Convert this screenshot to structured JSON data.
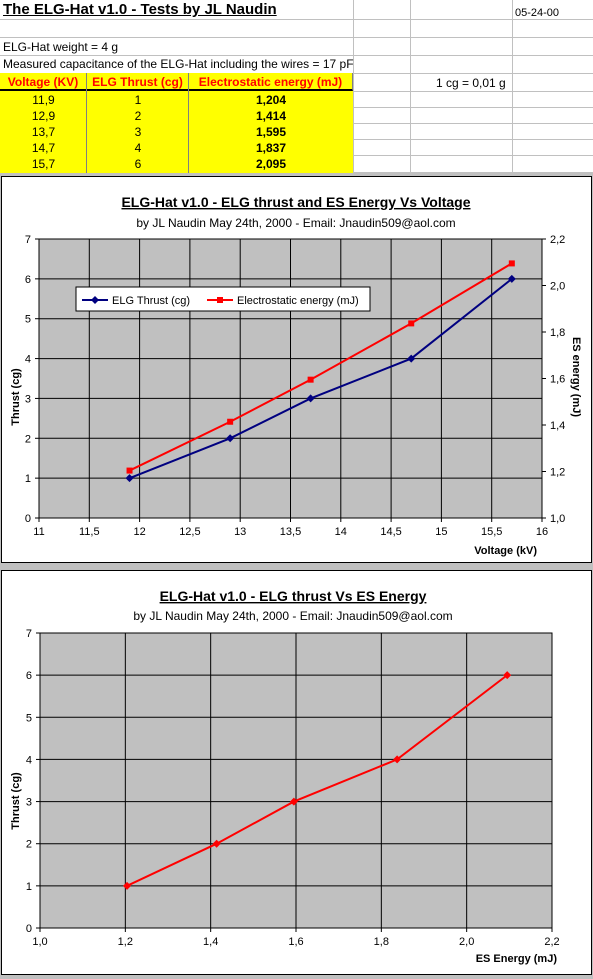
{
  "sheet": {
    "title": "The ELG-Hat v1.0 - Tests by JL Naudin",
    "date": "05-24-00",
    "weight": "ELG-Hat weight = 4 g",
    "capacitance": "Measured capacitance of the ELG-Hat including the wires = 17 pF",
    "conversion": "1 cg = 0,01 g",
    "table": {
      "headers": [
        "Voltage (KV)",
        "ELG Thrust (cg)",
        "Electrostatic energy (mJ)"
      ],
      "rows": [
        [
          "11,9",
          "1",
          "1,204"
        ],
        [
          "12,9",
          "2",
          "1,414"
        ],
        [
          "13,7",
          "3",
          "1,595"
        ],
        [
          "14,7",
          "4",
          "1,837"
        ],
        [
          "15,7",
          "6",
          "2,095"
        ]
      ]
    }
  },
  "chart_data": [
    {
      "type": "line",
      "title": "ELG-Hat v1.0 - ELG thrust and ES Energy Vs Voltage",
      "subtitle": "by JL Naudin May 24th, 2000 - Email: Jnaudin509@aol.com",
      "xlabel": "Voltage (kV)",
      "ylabel": "Thrust (cg)",
      "y2label": "ES energy (mJ)",
      "xlim": [
        11,
        16
      ],
      "ylim": [
        0,
        7
      ],
      "y2lim": [
        1.0,
        2.2
      ],
      "x_ticks": [
        "11",
        "11,5",
        "12",
        "12,5",
        "13",
        "13,5",
        "14",
        "14,5",
        "15",
        "15,5",
        "16"
      ],
      "y_ticks": [
        "0",
        "1",
        "2",
        "3",
        "4",
        "5",
        "6",
        "7"
      ],
      "y2_ticks": [
        "1,0",
        "1,2",
        "1,4",
        "1,6",
        "1,8",
        "2,0",
        "2,2"
      ],
      "grid": true,
      "legend_position": "upper-left",
      "x": [
        11.9,
        12.9,
        13.7,
        14.7,
        15.7
      ],
      "series": [
        {
          "name": "ELG Thrust (cg)",
          "axis": "left",
          "color": "#000080",
          "marker": "diamond",
          "values": [
            1,
            2,
            3,
            4,
            6
          ]
        },
        {
          "name": "Electrostatic energy (mJ)",
          "axis": "right",
          "color": "#ff0000",
          "marker": "square",
          "values": [
            1.204,
            1.414,
            1.595,
            1.837,
            2.095
          ]
        }
      ]
    },
    {
      "type": "line",
      "title": "ELG-Hat v1.0 - ELG thrust Vs ES Energy",
      "subtitle": "by JL Naudin May 24th, 2000 - Email: Jnaudin509@aol.com",
      "xlabel": "ES Energy (mJ)",
      "ylabel": "Thrust (cg)",
      "xlim": [
        1.0,
        2.2
      ],
      "ylim": [
        0,
        7
      ],
      "x_ticks": [
        "1,0",
        "1,2",
        "1,4",
        "1,6",
        "1,8",
        "2,0",
        "2,2"
      ],
      "y_ticks": [
        "0",
        "1",
        "2",
        "3",
        "4",
        "5",
        "6",
        "7"
      ],
      "grid": true,
      "x": [
        1.204,
        1.414,
        1.595,
        1.837,
        2.095
      ],
      "series": [
        {
          "color": "#ff0000",
          "marker": "diamond",
          "values": [
            1,
            2,
            3,
            4,
            6
          ]
        }
      ]
    }
  ]
}
